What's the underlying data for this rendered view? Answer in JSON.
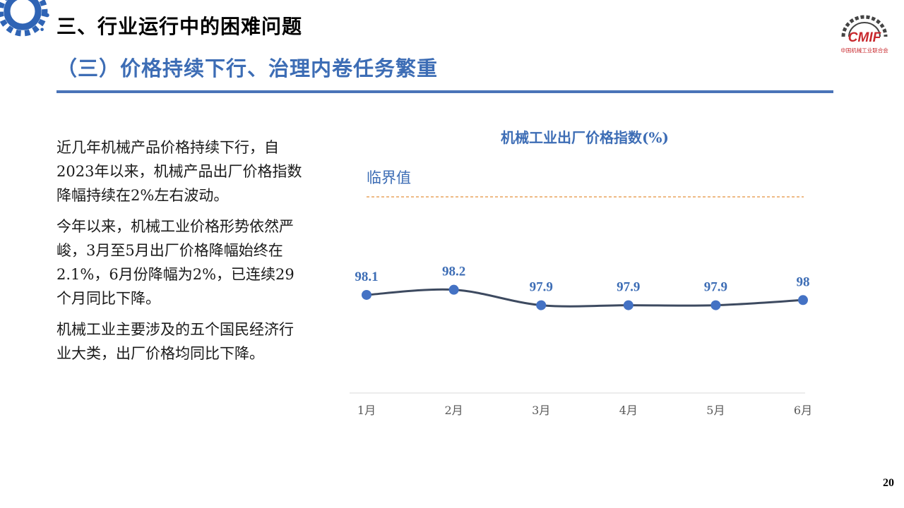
{
  "header": {
    "section_title": "三、行业运行中的困难问题",
    "sub_title": "（三）价格持续下行、治理内卷任务繁重"
  },
  "logo": {
    "text": "CMIF",
    "org_name": "中国机械工业联合会"
  },
  "body": {
    "paragraphs": [
      "近几年机械产品价格持续下行，自2023年以来，机械产品出厂价格指数降幅持续在2%左右波动。",
      "今年以来，机械工业价格形势依然严峻，3月至5月出厂价格降幅始终在2.1%，6月份降幅为2%，已连续29个月同比下降。",
      "机械工业主要涉及的五个国民经济行业大类，出厂价格均同比下降。"
    ]
  },
  "chart_data": {
    "type": "line",
    "title": "机械工业出厂价格指数(%)",
    "categories": [
      "1月",
      "2月",
      "3月",
      "4月",
      "5月",
      "6月"
    ],
    "values": [
      98.1,
      98.2,
      97.9,
      97.9,
      97.9,
      98
    ],
    "data_labels": [
      "98.1",
      "98.2",
      "97.9",
      "97.9",
      "97.9",
      "98"
    ],
    "ylim": [
      96.2,
      100.3
    ],
    "reference_line": {
      "label": "临界值",
      "value": 100,
      "style": "dashed"
    },
    "grid": false,
    "colors": {
      "line": "#3d4a60",
      "marker": "#4472c4",
      "reference": "#e8a35d",
      "title": "#3d6db5",
      "axis": "#d9d9d9"
    }
  },
  "footer": {
    "page_number": "20"
  }
}
